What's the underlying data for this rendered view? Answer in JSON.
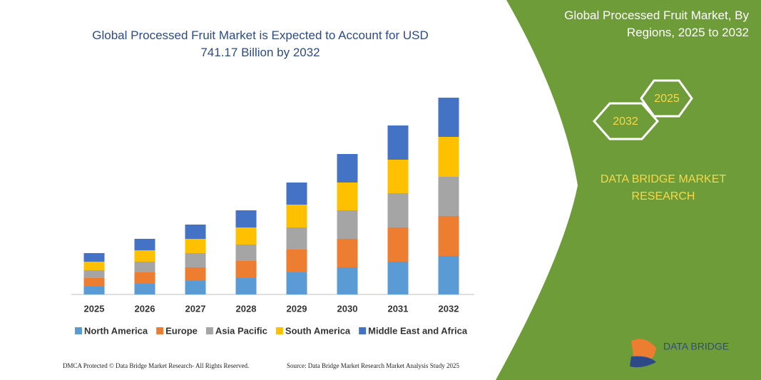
{
  "chart_data": {
    "type": "stacked-bar",
    "title": "Global Processed Fruit Market is Expected to Account for USD 741.17 Billion by 2032",
    "categories": [
      "2025",
      "2026",
      "2027",
      "2028",
      "2029",
      "2030",
      "2031",
      "2032"
    ],
    "series": [
      {
        "name": "North America",
        "color": "#5b9bd5",
        "values": [
          11,
          15,
          19,
          23,
          31,
          38,
          46,
          54
        ]
      },
      {
        "name": "Europe",
        "color": "#ed7d31",
        "values": [
          12,
          16,
          19,
          24,
          32,
          40,
          48,
          56
        ]
      },
      {
        "name": "Asia Pacific",
        "color": "#a5a5a5",
        "values": [
          11,
          15,
          20,
          23,
          31,
          40,
          48,
          55
        ]
      },
      {
        "name": "South America",
        "color": "#ffc000",
        "values": [
          12,
          16,
          20,
          24,
          32,
          39,
          47,
          56
        ]
      },
      {
        "name": "Middle East and Africa",
        "color": "#4472c4",
        "values": [
          12,
          16,
          20,
          24,
          31,
          40,
          48,
          55
        ]
      }
    ],
    "legend": "bottom"
  },
  "panel": {
    "title": "Global Processed Fruit Market, By Regions, 2025 to 2032",
    "hex_right": "2025",
    "hex_left": "2032",
    "brand": "DATA BRIDGE MARKET RESEARCH",
    "logo": "DATA BRIDGE"
  },
  "footer": {
    "left": "DMCA Protected © Data Bridge Market Research- All Rights Reserved.",
    "right": "Source: Data Bridge Market Research Market Analysis Study 2025"
  }
}
